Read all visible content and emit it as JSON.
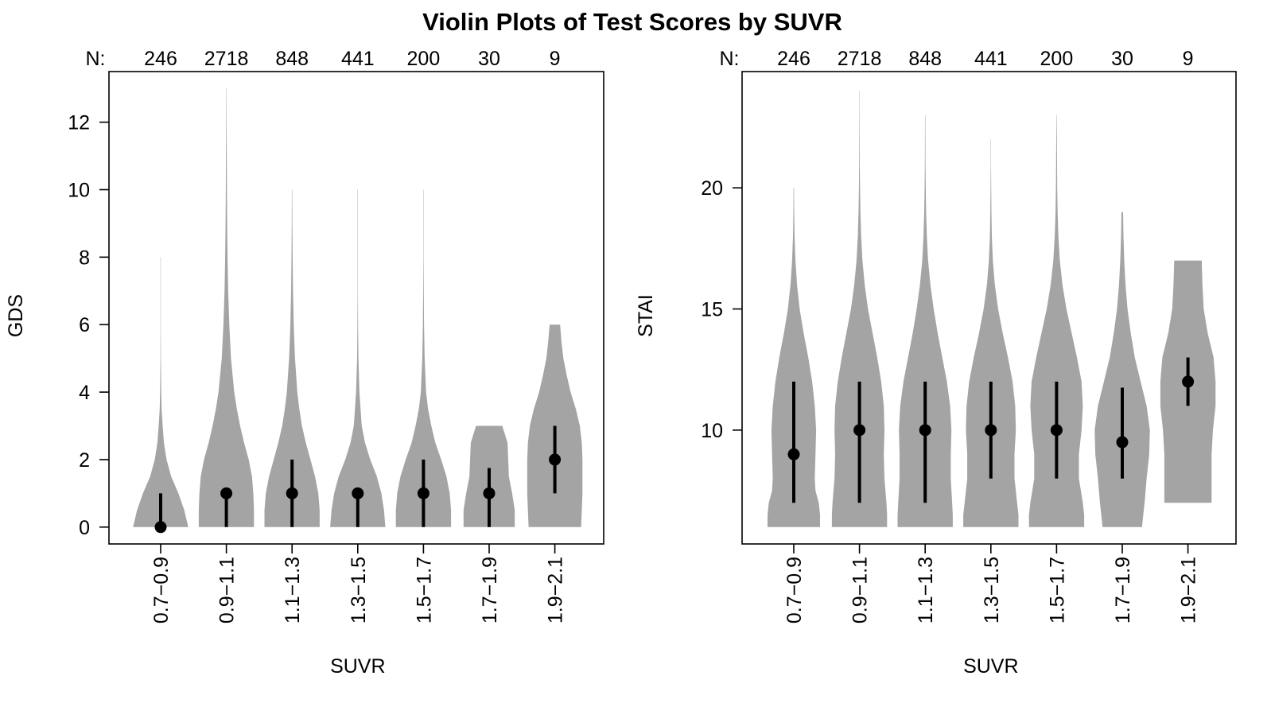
{
  "figure": {
    "title": "Violin Plots of Test Scores by SUVR",
    "n_prefix": "N:"
  },
  "colors": {
    "violin_fill": "#a4a4a4",
    "marker": "#000000",
    "axis": "#000000",
    "background": "#ffffff"
  },
  "chart_data": [
    {
      "type": "violin",
      "ylabel": "GDS",
      "xlabel": "SUVR",
      "categories": [
        "0.7−0.9",
        "0.9−1.1",
        "1.1−1.3",
        "1.3−1.5",
        "1.5−1.7",
        "1.7−1.9",
        "1.9−2.1"
      ],
      "n": [
        "246",
        "2718",
        "848",
        "441",
        "200",
        "30",
        "9"
      ],
      "ylim": [
        -0.5,
        13.5
      ],
      "yticks": [
        0,
        2,
        4,
        6,
        8,
        10,
        12
      ],
      "median": [
        0,
        1,
        1,
        1,
        1,
        1,
        2
      ],
      "q1": [
        0,
        0,
        0,
        0,
        0,
        0,
        1
      ],
      "q3": [
        1,
        1,
        2,
        1,
        2,
        1.75,
        3
      ],
      "min": [
        0,
        0,
        0,
        0,
        0,
        0,
        0
      ],
      "max": [
        8,
        13,
        10,
        10,
        10,
        3,
        6
      ],
      "density_values": [
        [
          0,
          0.5,
          1,
          1.5,
          2,
          2.5,
          3,
          3.5,
          4,
          5,
          6,
          7,
          8
        ],
        [
          0,
          0.5,
          1,
          1.5,
          2,
          2.5,
          3,
          3.5,
          4,
          5,
          6,
          7,
          8,
          9,
          10,
          11,
          12,
          13
        ],
        [
          0,
          0.5,
          1,
          1.5,
          2,
          2.5,
          3,
          3.5,
          4,
          5,
          6,
          7,
          8,
          9,
          10
        ],
        [
          0,
          0.5,
          1,
          1.5,
          2,
          2.5,
          3,
          4,
          5,
          6,
          7,
          8,
          9,
          10
        ],
        [
          0,
          0.5,
          1,
          1.5,
          2,
          2.5,
          3,
          3.5,
          4,
          5,
          6,
          7,
          8,
          9,
          10
        ],
        [
          0,
          0.5,
          1,
          1.5,
          2,
          2.5,
          3
        ],
        [
          0,
          0.5,
          1,
          1.5,
          2,
          2.5,
          3,
          3.5,
          4,
          4.5,
          5,
          5.5,
          6
        ]
      ],
      "density_widths": [
        [
          0.42,
          0.36,
          0.27,
          0.16,
          0.09,
          0.05,
          0.03,
          0.015,
          0.008,
          0.004,
          0.003,
          0.002,
          0.002
        ],
        [
          0.42,
          0.42,
          0.41,
          0.39,
          0.34,
          0.27,
          0.21,
          0.16,
          0.12,
          0.07,
          0.045,
          0.028,
          0.018,
          0.012,
          0.008,
          0.006,
          0.004,
          0.003
        ],
        [
          0.42,
          0.42,
          0.4,
          0.35,
          0.28,
          0.21,
          0.15,
          0.11,
          0.08,
          0.045,
          0.025,
          0.014,
          0.008,
          0.005,
          0.003
        ],
        [
          0.42,
          0.4,
          0.36,
          0.29,
          0.19,
          0.11,
          0.06,
          0.025,
          0.01,
          0.005,
          0.003,
          0.002,
          0.002,
          0.002
        ],
        [
          0.42,
          0.42,
          0.4,
          0.35,
          0.27,
          0.18,
          0.12,
          0.07,
          0.04,
          0.018,
          0.009,
          0.005,
          0.003,
          0.002,
          0.002
        ],
        [
          0.39,
          0.39,
          0.35,
          0.3,
          0.29,
          0.28,
          0.2
        ],
        [
          0.4,
          0.41,
          0.42,
          0.42,
          0.42,
          0.41,
          0.38,
          0.32,
          0.24,
          0.18,
          0.13,
          0.1,
          0.08
        ]
      ]
    },
    {
      "type": "violin",
      "ylabel": "STAI",
      "xlabel": "SUVR",
      "categories": [
        "0.7−0.9",
        "0.9−1.1",
        "1.1−1.3",
        "1.3−1.5",
        "1.5−1.7",
        "1.7−1.9",
        "1.9−2.1"
      ],
      "n": [
        "246",
        "2718",
        "848",
        "441",
        "200",
        "30",
        "9"
      ],
      "ylim": [
        5.3,
        24.8
      ],
      "yticks": [
        10,
        15,
        20
      ],
      "median": [
        9,
        10,
        10,
        10,
        10,
        9.5,
        12
      ],
      "q1": [
        7,
        7,
        7,
        8,
        8,
        8,
        11
      ],
      "q3": [
        12,
        12,
        12,
        12,
        12,
        11.75,
        13
      ],
      "min": [
        6,
        6,
        6,
        6,
        6,
        6,
        7
      ],
      "max": [
        20,
        24,
        23,
        22,
        23,
        19,
        17
      ],
      "density_values": [
        [
          6,
          6.5,
          7,
          7.5,
          8,
          9,
          10,
          11,
          12,
          13,
          14,
          15,
          16,
          17,
          18,
          19,
          20
        ],
        [
          6,
          6.5,
          7,
          8,
          9,
          10,
          11,
          12,
          13,
          14,
          15,
          16,
          17,
          18,
          19,
          20,
          21,
          22,
          23,
          24
        ],
        [
          6,
          6.5,
          7,
          8,
          9,
          10,
          11,
          12,
          13,
          14,
          15,
          16,
          17,
          18,
          19,
          20,
          21,
          22,
          23
        ],
        [
          6,
          6.5,
          7,
          8,
          9,
          10,
          11,
          12,
          13,
          14,
          15,
          16,
          17,
          18,
          19,
          20,
          21,
          22
        ],
        [
          6,
          6.5,
          7,
          8,
          9,
          10,
          11,
          12,
          13,
          14,
          15,
          16,
          17,
          18,
          19,
          20,
          21,
          22,
          23
        ],
        [
          6,
          6.5,
          7,
          8,
          9,
          10,
          11,
          12,
          13,
          14,
          15,
          16,
          17,
          18,
          19
        ],
        [
          7,
          8,
          9,
          10,
          11,
          12,
          13,
          14,
          15,
          16,
          17
        ]
      ],
      "density_widths": [
        [
          0.4,
          0.4,
          0.38,
          0.33,
          0.32,
          0.33,
          0.34,
          0.32,
          0.28,
          0.22,
          0.15,
          0.09,
          0.05,
          0.025,
          0.012,
          0.006,
          0.004
        ],
        [
          0.42,
          0.42,
          0.41,
          0.38,
          0.37,
          0.38,
          0.37,
          0.33,
          0.27,
          0.2,
          0.13,
          0.08,
          0.045,
          0.025,
          0.014,
          0.008,
          0.005,
          0.004,
          0.003,
          0.002
        ],
        [
          0.42,
          0.42,
          0.41,
          0.39,
          0.39,
          0.4,
          0.38,
          0.33,
          0.26,
          0.19,
          0.13,
          0.08,
          0.045,
          0.025,
          0.014,
          0.008,
          0.005,
          0.004,
          0.003
        ],
        [
          0.42,
          0.42,
          0.4,
          0.36,
          0.36,
          0.38,
          0.37,
          0.33,
          0.26,
          0.18,
          0.11,
          0.06,
          0.03,
          0.015,
          0.008,
          0.005,
          0.003,
          0.002
        ],
        [
          0.42,
          0.42,
          0.4,
          0.34,
          0.34,
          0.38,
          0.4,
          0.38,
          0.31,
          0.23,
          0.15,
          0.09,
          0.05,
          0.028,
          0.016,
          0.01,
          0.007,
          0.005,
          0.003
        ],
        [
          0.3,
          0.32,
          0.34,
          0.37,
          0.41,
          0.42,
          0.37,
          0.28,
          0.19,
          0.13,
          0.08,
          0.05,
          0.03,
          0.018,
          0.012
        ],
        [
          0.36,
          0.36,
          0.36,
          0.38,
          0.42,
          0.42,
          0.39,
          0.3,
          0.24,
          0.22,
          0.21
        ]
      ]
    }
  ]
}
